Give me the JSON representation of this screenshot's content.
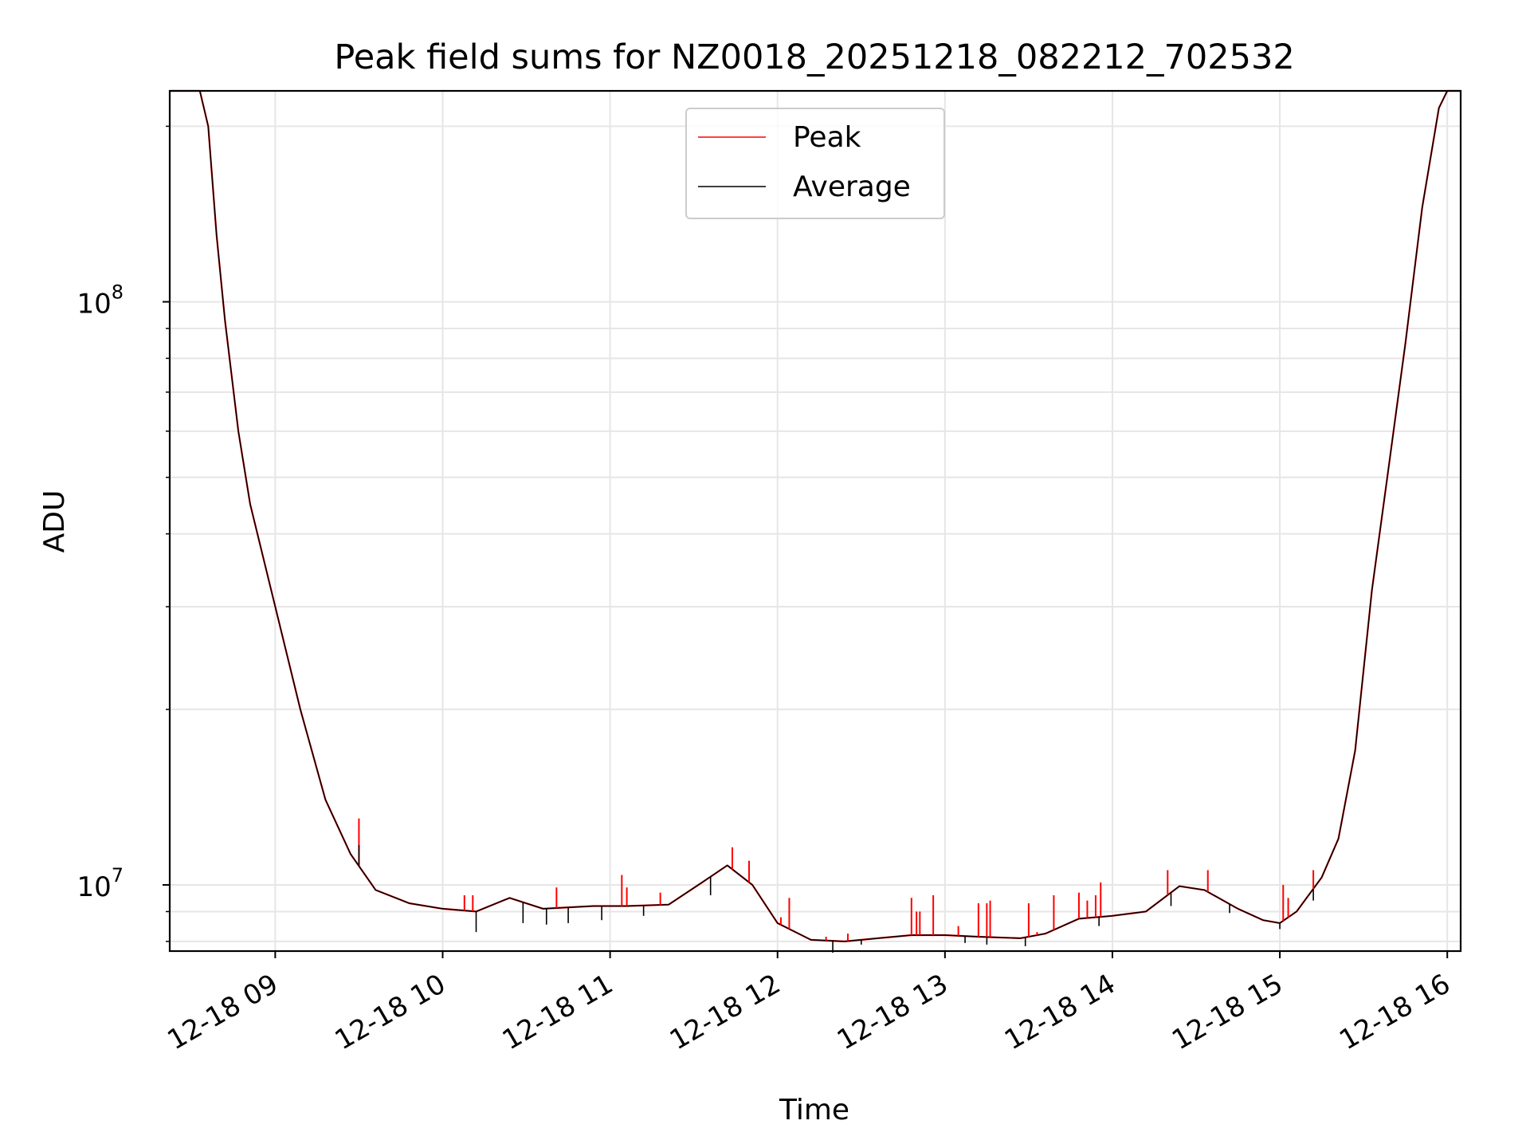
{
  "chart_data": {
    "type": "line",
    "title": "Peak field sums for NZ0018_20251218_082212_702532",
    "xlabel": "Time",
    "ylabel": "ADU",
    "yscale": "log",
    "grid": true,
    "legend_position": "upper-center",
    "xlim_hours": [
      8.37,
      16.08
    ],
    "ylim": [
      7700000,
      230000000
    ],
    "x_ticks": [
      {
        "hour": 9,
        "label": "12-18 09"
      },
      {
        "hour": 10,
        "label": "12-18 10"
      },
      {
        "hour": 11,
        "label": "12-18 11"
      },
      {
        "hour": 12,
        "label": "12-18 12"
      },
      {
        "hour": 13,
        "label": "12-18 13"
      },
      {
        "hour": 14,
        "label": "12-18 14"
      },
      {
        "hour": 15,
        "label": "12-18 15"
      },
      {
        "hour": 16,
        "label": "12-18 16"
      }
    ],
    "y_ticks": [
      {
        "value": 10000000,
        "base": "10",
        "exp": "7"
      },
      {
        "value": 100000000,
        "base": "10",
        "exp": "8"
      }
    ],
    "series": [
      {
        "name": "Peak",
        "color": "#ff0000",
        "points": [
          [
            8.37,
            230000000
          ],
          [
            8.55,
            230000000
          ],
          [
            8.6,
            200000000
          ],
          [
            8.65,
            130000000
          ],
          [
            8.7,
            93000000
          ],
          [
            8.78,
            60000000
          ],
          [
            8.85,
            45000000
          ],
          [
            9.0,
            30000000
          ],
          [
            9.15,
            20000000
          ],
          [
            9.3,
            14000000
          ],
          [
            9.45,
            11300000
          ],
          [
            9.6,
            9800000
          ],
          [
            9.8,
            9300000
          ],
          [
            10.0,
            9100000
          ],
          [
            10.2,
            9000000
          ],
          [
            10.4,
            9500000
          ],
          [
            10.6,
            9100000
          ],
          [
            10.9,
            9200000
          ],
          [
            11.1,
            9200000
          ],
          [
            11.35,
            9250000
          ],
          [
            11.55,
            10100000
          ],
          [
            11.7,
            10800000
          ],
          [
            11.85,
            10000000
          ],
          [
            12.0,
            8600000
          ],
          [
            12.2,
            8050000
          ],
          [
            12.4,
            8000000
          ],
          [
            12.6,
            8100000
          ],
          [
            12.8,
            8200000
          ],
          [
            13.0,
            8200000
          ],
          [
            13.2,
            8150000
          ],
          [
            13.45,
            8100000
          ],
          [
            13.6,
            8250000
          ],
          [
            13.8,
            8750000
          ],
          [
            14.0,
            8850000
          ],
          [
            14.2,
            9000000
          ],
          [
            14.4,
            9950000
          ],
          [
            14.55,
            9800000
          ],
          [
            14.75,
            9100000
          ],
          [
            14.9,
            8700000
          ],
          [
            15.0,
            8600000
          ],
          [
            15.1,
            9000000
          ],
          [
            15.25,
            10300000
          ],
          [
            15.35,
            12000000
          ],
          [
            15.45,
            17000000
          ],
          [
            15.55,
            32000000
          ],
          [
            15.65,
            52000000
          ],
          [
            15.75,
            85000000
          ],
          [
            15.85,
            145000000
          ],
          [
            15.95,
            215000000
          ],
          [
            16.0,
            230000000
          ],
          [
            16.08,
            230000000
          ]
        ],
        "spikes": [
          [
            9.5,
            13000000
          ],
          [
            10.13,
            9600000
          ],
          [
            10.18,
            9600000
          ],
          [
            10.68,
            9900000
          ],
          [
            11.07,
            10400000
          ],
          [
            11.1,
            9900000
          ],
          [
            11.3,
            9700000
          ],
          [
            11.73,
            11600000
          ],
          [
            11.83,
            11000000
          ],
          [
            12.02,
            8800000
          ],
          [
            12.07,
            9500000
          ],
          [
            12.29,
            8150000
          ],
          [
            12.42,
            8250000
          ],
          [
            12.8,
            9500000
          ],
          [
            12.83,
            9000000
          ],
          [
            12.85,
            9000000
          ],
          [
            12.93,
            9600000
          ],
          [
            13.08,
            8500000
          ],
          [
            13.2,
            9300000
          ],
          [
            13.25,
            9300000
          ],
          [
            13.27,
            9400000
          ],
          [
            13.5,
            9300000
          ],
          [
            13.55,
            8300000
          ],
          [
            13.65,
            9600000
          ],
          [
            13.8,
            9700000
          ],
          [
            13.85,
            9400000
          ],
          [
            13.9,
            9600000
          ],
          [
            13.93,
            10100000
          ],
          [
            14.33,
            10600000
          ],
          [
            14.57,
            10600000
          ],
          [
            15.02,
            10000000
          ],
          [
            15.05,
            9500000
          ],
          [
            15.2,
            10600000
          ]
        ]
      },
      {
        "name": "Average",
        "color": "#000000",
        "points": [
          [
            8.37,
            230000000
          ],
          [
            8.55,
            230000000
          ],
          [
            8.6,
            200000000
          ],
          [
            8.65,
            130000000
          ],
          [
            8.7,
            93000000
          ],
          [
            8.78,
            60000000
          ],
          [
            8.85,
            45000000
          ],
          [
            9.0,
            30000000
          ],
          [
            9.15,
            20000000
          ],
          [
            9.3,
            14000000
          ],
          [
            9.45,
            11300000
          ],
          [
            9.6,
            9800000
          ],
          [
            9.8,
            9300000
          ],
          [
            10.0,
            9100000
          ],
          [
            10.2,
            9000000
          ],
          [
            10.4,
            9500000
          ],
          [
            10.6,
            9100000
          ],
          [
            10.9,
            9200000
          ],
          [
            11.1,
            9200000
          ],
          [
            11.35,
            9250000
          ],
          [
            11.55,
            10100000
          ],
          [
            11.7,
            10800000
          ],
          [
            11.85,
            10000000
          ],
          [
            12.0,
            8600000
          ],
          [
            12.2,
            8050000
          ],
          [
            12.4,
            8000000
          ],
          [
            12.6,
            8100000
          ],
          [
            12.8,
            8200000
          ],
          [
            13.0,
            8200000
          ],
          [
            13.2,
            8150000
          ],
          [
            13.45,
            8100000
          ],
          [
            13.6,
            8250000
          ],
          [
            13.8,
            8750000
          ],
          [
            14.0,
            8850000
          ],
          [
            14.2,
            9000000
          ],
          [
            14.4,
            9950000
          ],
          [
            14.55,
            9800000
          ],
          [
            14.75,
            9100000
          ],
          [
            14.9,
            8700000
          ],
          [
            15.0,
            8600000
          ],
          [
            15.1,
            9000000
          ],
          [
            15.25,
            10300000
          ],
          [
            15.35,
            12000000
          ],
          [
            15.45,
            17000000
          ],
          [
            15.55,
            32000000
          ],
          [
            15.65,
            52000000
          ],
          [
            15.75,
            85000000
          ],
          [
            15.85,
            145000000
          ],
          [
            15.95,
            215000000
          ],
          [
            16.0,
            230000000
          ],
          [
            16.08,
            230000000
          ]
        ],
        "dips": [
          [
            9.5,
            11700000
          ],
          [
            10.2,
            8300000
          ],
          [
            10.48,
            8600000
          ],
          [
            10.62,
            8550000
          ],
          [
            10.75,
            8600000
          ],
          [
            10.95,
            8700000
          ],
          [
            11.2,
            8850000
          ],
          [
            11.6,
            9600000
          ],
          [
            12.33,
            7650000
          ],
          [
            12.5,
            7900000
          ],
          [
            13.12,
            7950000
          ],
          [
            13.25,
            7900000
          ],
          [
            13.48,
            7850000
          ],
          [
            13.92,
            8500000
          ],
          [
            14.35,
            9200000
          ],
          [
            14.7,
            8950000
          ],
          [
            15.0,
            8400000
          ],
          [
            15.2,
            9400000
          ]
        ]
      }
    ]
  }
}
